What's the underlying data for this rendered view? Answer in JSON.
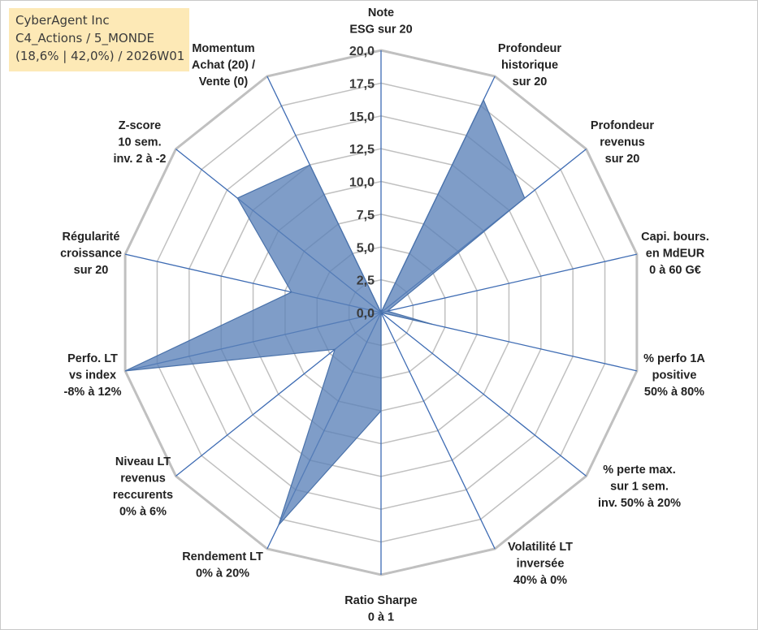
{
  "title": {
    "line1": "CyberAgent Inc",
    "line2": "C4_Actions / 5_MONDE",
    "line3": "(18,6% | 42,0%) / 2026W01"
  },
  "chart_data": {
    "type": "radar",
    "rmin": 0,
    "rmax": 20,
    "ticks": [
      "0,0",
      "2,5",
      "5,0",
      "7,5",
      "10,0",
      "12,5",
      "15,0",
      "17,5",
      "20,0"
    ],
    "axes": [
      {
        "lines": [
          "Note",
          "ESG sur 20"
        ]
      },
      {
        "lines": [
          "Profondeur",
          "historique",
          "sur 20"
        ]
      },
      {
        "lines": [
          "Profondeur",
          "revenus",
          "sur 20"
        ]
      },
      {
        "lines": [
          "Capi. bours.",
          "en MdEUR",
          "0 à 60 G€"
        ]
      },
      {
        "lines": [
          "% perfo 1A",
          "positive",
          "50% à 80%"
        ]
      },
      {
        "lines": [
          "% perte max.",
          "sur 1 sem.",
          "inv. 50% à 20%"
        ]
      },
      {
        "lines": [
          "Volatilité LT",
          "inversée",
          "40% à 0%"
        ]
      },
      {
        "lines": [
          "Ratio Sharpe",
          "0 à 1"
        ]
      },
      {
        "lines": [
          "Rendement LT",
          "0% à 20%"
        ]
      },
      {
        "lines": [
          "Niveau LT",
          "revenus",
          "reccurents",
          "0% à 6%"
        ]
      },
      {
        "lines": [
          "Perfo. LT",
          "vs index",
          "-8% à 12%"
        ]
      },
      {
        "lines": [
          "Régularité",
          "croissance",
          "sur 20"
        ]
      },
      {
        "lines": [
          "Z-score",
          "10 sem.",
          "inv. 2 à -2"
        ]
      },
      {
        "lines": [
          "Momentum",
          "Achat (20) /",
          "Vente (0)"
        ]
      }
    ],
    "values": [
      0,
      18,
      14,
      0.5,
      4,
      0,
      0,
      7.5,
      18,
      4.5,
      20,
      7,
      14,
      12.5
    ],
    "colors": {
      "fill": "#5b82b8",
      "outline": "#4a72aa",
      "grid": "#c0c0c0",
      "spoke": "#3d6bb3"
    },
    "grid": true,
    "legend": "none"
  }
}
